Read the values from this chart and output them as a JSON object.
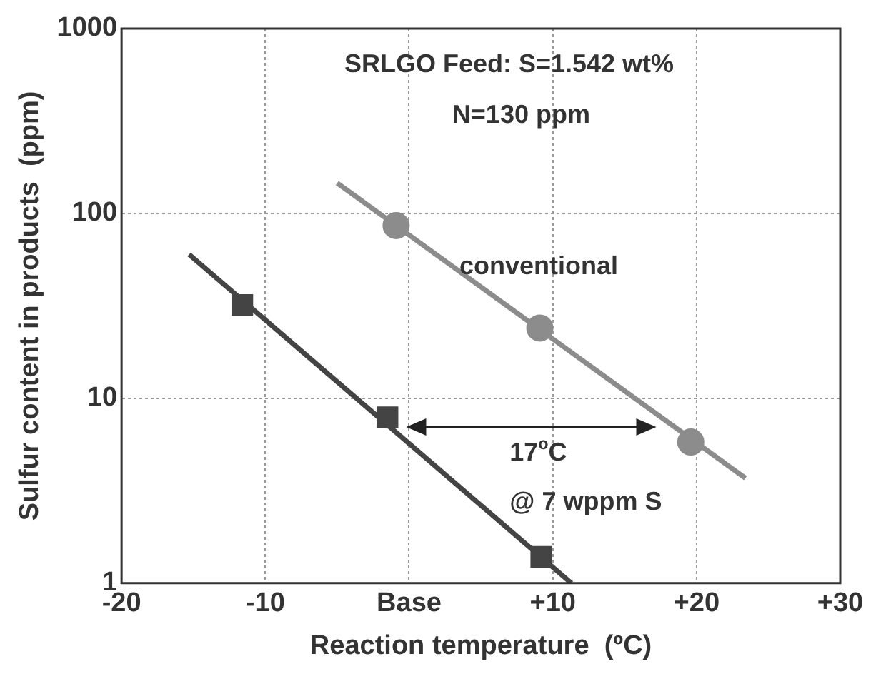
{
  "chart_data": {
    "type": "scatter",
    "xlabel": "Reaction temperature  (ºC)",
    "ylabel": "Sulfur content in products  (ppm)",
    "xlim": [
      -20,
      30
    ],
    "xticks": [
      {
        "value": -20,
        "label": "-20"
      },
      {
        "value": -10,
        "label": "-10"
      },
      {
        "value": 0,
        "label": "Base"
      },
      {
        "value": 10,
        "label": "+10"
      },
      {
        "value": 20,
        "label": "+20"
      },
      {
        "value": 30,
        "label": "+30"
      }
    ],
    "ylim": [
      1,
      1000
    ],
    "yticks": [
      1,
      10,
      100,
      1000
    ],
    "log": "y",
    "grid": true,
    "legend": false,
    "series": [
      {
        "type": "line",
        "color": "#444444",
        "x": [
          -15.3,
          11.3
        ],
        "values": [
          60,
          1
        ],
        "marker": "none"
      },
      {
        "type": "line",
        "color": "#8c8c8c",
        "x": [
          -5,
          23.4
        ],
        "values": [
          146,
          3.7
        ],
        "marker": "none"
      },
      {
        "type": "scatter",
        "color": "#444444",
        "x": [
          -11.6,
          -1.5,
          9.2
        ],
        "values": [
          32,
          7.9,
          1.39
        ],
        "marker": "square"
      },
      {
        "type": "scatter",
        "color": "#8c8c8c",
        "x": [
          -0.9,
          9.1,
          19.6
        ],
        "values": [
          86,
          24,
          5.8
        ],
        "marker": "circle"
      }
    ],
    "annotations": [
      "SRLGO Feed: S=1.542 wt%",
      "N=130 ppm",
      "conventional",
      "17$^{o}$C",
      "@ 7 wppm S"
    ]
  }
}
